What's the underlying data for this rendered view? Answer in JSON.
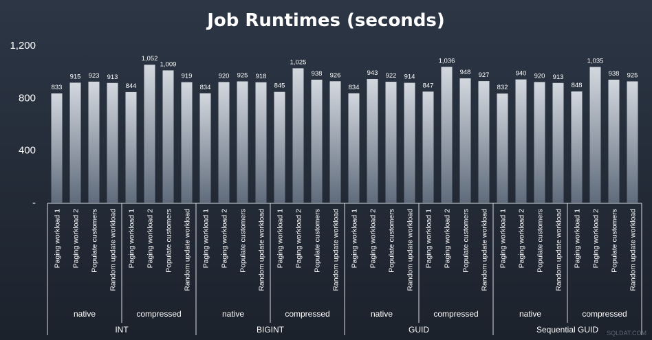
{
  "chart_data": {
    "type": "bar",
    "title": "Job Runtimes (seconds)",
    "ylim": [
      0,
      1200
    ],
    "yticks": [
      {
        "value": 0,
        "label": "-"
      },
      {
        "value": 400,
        "label": "400"
      },
      {
        "value": 800,
        "label": "800"
      },
      {
        "value": 1200,
        "label": "1,200"
      }
    ],
    "grid": false,
    "bar_color": "#c7cdd6",
    "categories": [
      "Paging workload 1",
      "Paging workload 2",
      "Populate customers",
      "Random update workload"
    ],
    "groups": [
      {
        "name": "INT",
        "subgroups": [
          {
            "name": "native",
            "values": [
              833,
              915,
              923,
              913
            ],
            "labels": [
              "833",
              "915",
              "923",
              "913"
            ]
          },
          {
            "name": "compressed",
            "values": [
              844,
              1052,
              1009,
              919
            ],
            "labels": [
              "844",
              "1,052",
              "1,009",
              "919"
            ]
          }
        ]
      },
      {
        "name": "BIGINT",
        "subgroups": [
          {
            "name": "native",
            "values": [
              834,
              920,
              925,
              918
            ],
            "labels": [
              "834",
              "920",
              "925",
              "918"
            ]
          },
          {
            "name": "compressed",
            "values": [
              845,
              1025,
              938,
              926
            ],
            "labels": [
              "845",
              "1,025",
              "938",
              "926"
            ]
          }
        ]
      },
      {
        "name": "GUID",
        "subgroups": [
          {
            "name": "native",
            "values": [
              834,
              943,
              922,
              914
            ],
            "labels": [
              "834",
              "943",
              "922",
              "914"
            ]
          },
          {
            "name": "compressed",
            "values": [
              847,
              1036,
              948,
              927
            ],
            "labels": [
              "847",
              "1,036",
              "948",
              "927"
            ]
          }
        ]
      },
      {
        "name": "Sequential GUID",
        "subgroups": [
          {
            "name": "native",
            "values": [
              832,
              940,
              920,
              913
            ],
            "labels": [
              "832",
              "940",
              "920",
              "913"
            ]
          },
          {
            "name": "compressed",
            "values": [
              848,
              1035,
              938,
              925
            ],
            "labels": [
              "848",
              "1,035",
              "938",
              "925"
            ]
          }
        ]
      }
    ]
  },
  "watermark": "SQLDAT.COM"
}
